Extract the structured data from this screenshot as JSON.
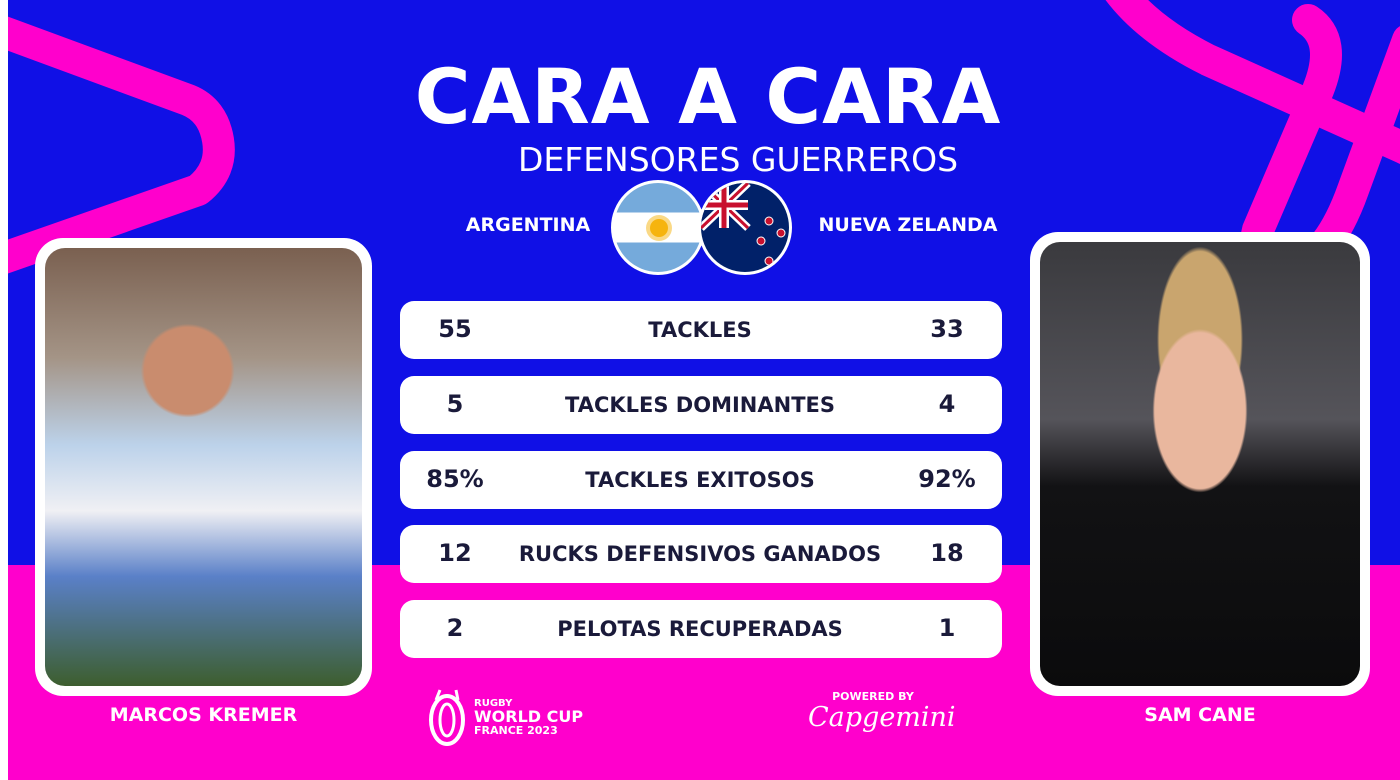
{
  "title": "CARA A CARA",
  "subtitle": "DEFENSORES GUERREROS",
  "teams": {
    "a": "ARGENTINA",
    "b": "NUEVA ZELANDA"
  },
  "players": {
    "a": "MARCOS KREMER",
    "b": "SAM CANE"
  },
  "stats": [
    {
      "label": "TACKLES",
      "a": "55",
      "b": "33"
    },
    {
      "label": "TACKLES DOMINANTES",
      "a": "5",
      "b": "4"
    },
    {
      "label": "TACKLES EXITOSOS",
      "a": "85%",
      "b": "92%"
    },
    {
      "label": "RUCKS DEFENSIVOS GANADOS",
      "a": "12",
      "b": "18"
    },
    {
      "label": "PELOTAS RECUPERADAS",
      "a": "2",
      "b": "1"
    }
  ],
  "footer": {
    "rwc": [
      "RUGBY",
      "WORLD CUP",
      "FRANCE 2023"
    ],
    "powered_by": "POWERED BY",
    "sponsor": "Capgemini"
  },
  "colors": {
    "blue": "#1010e6",
    "pink": "#ff00cc"
  }
}
